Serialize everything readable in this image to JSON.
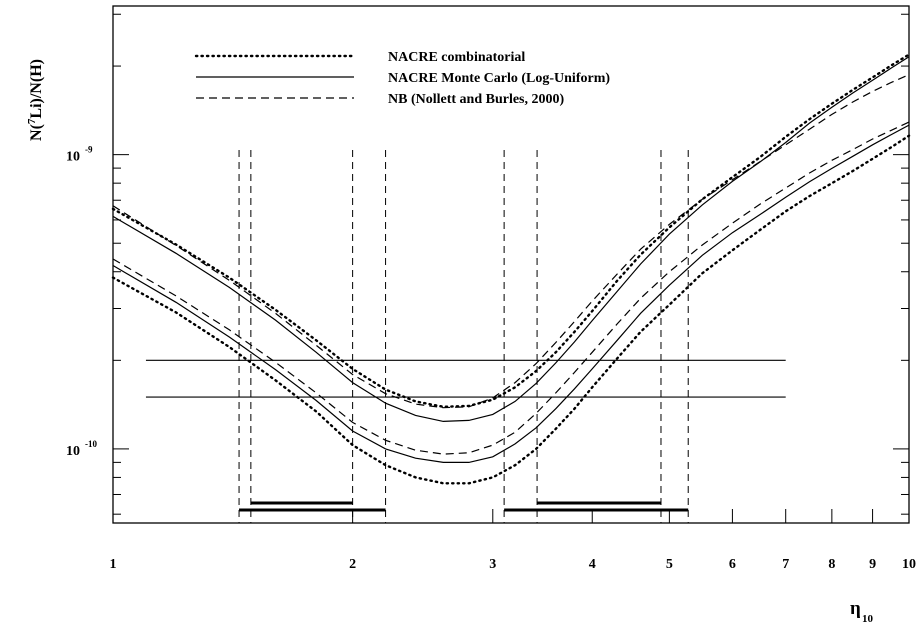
{
  "chart_data": {
    "type": "line",
    "title": "",
    "xlabel_main": "η",
    "xlabel_sub": "10",
    "ylabel_prefix": "N(",
    "ylabel_sup": "7",
    "ylabel_suffix": "Li)/N(H)",
    "x_scale": "log",
    "y_scale": "log",
    "xlim": [
      1,
      10
    ],
    "ylim": [
      5.6e-11,
      3.2e-09
    ],
    "grid": false,
    "legend_position": "top-center",
    "x_ticks": [
      {
        "value": 1,
        "label": "1"
      },
      {
        "value": 2,
        "label": "2"
      },
      {
        "value": 3,
        "label": "3"
      },
      {
        "value": 4,
        "label": "4"
      },
      {
        "value": 5,
        "label": "5"
      },
      {
        "value": 6,
        "label": "6"
      },
      {
        "value": 7,
        "label": "7"
      },
      {
        "value": 8,
        "label": "8"
      },
      {
        "value": 9,
        "label": "9"
      },
      {
        "value": 10,
        "label": "10"
      }
    ],
    "y_ticks": [
      {
        "value": 1e-10,
        "base": "10",
        "exp": "-10"
      },
      {
        "value": 1e-09,
        "base": "10",
        "exp": "-9"
      }
    ],
    "legend": [
      {
        "label": "NACRE combinatorial",
        "style": "dotted"
      },
      {
        "label": "NACRE Monte Carlo (Log-Uniform)",
        "style": "solid"
      },
      {
        "label": "NB (Nollett and Burles, 2000)",
        "style": "dashed"
      }
    ],
    "x": [
      1.0,
      1.2,
      1.4,
      1.6,
      1.8,
      2.0,
      2.2,
      2.4,
      2.6,
      2.8,
      3.0,
      3.2,
      3.4,
      3.6,
      3.8,
      4.0,
      4.3,
      4.6,
      5.0,
      5.5,
      6.0,
      6.5,
      7.0,
      7.5,
      8.0,
      8.5,
      9.0,
      9.5,
      10.0
    ],
    "series": [
      {
        "style": "dotted",
        "group": "upper",
        "values": [
          6.54e-10,
          4.95e-10,
          3.82e-10,
          2.97e-10,
          2.34e-10,
          1.87e-10,
          1.59e-10,
          1.45e-10,
          1.39e-10,
          1.4e-10,
          1.47e-10,
          1.62e-10,
          1.84e-10,
          2.13e-10,
          2.5e-10,
          2.94e-10,
          3.73e-10,
          4.57e-10,
          5.66e-10,
          7.05e-10,
          8.38e-10,
          9.81e-10,
          1.15e-09,
          1.32e-09,
          1.49e-09,
          1.66e-09,
          1.83e-09,
          2.01e-09,
          2.19e-09
        ]
      },
      {
        "style": "dotted",
        "group": "lower",
        "values": [
          3.82e-10,
          2.91e-10,
          2.22e-10,
          1.71e-10,
          1.34e-10,
          1.03e-10,
          8.8e-11,
          8e-11,
          7.64e-11,
          7.64e-11,
          8e-11,
          8.8e-11,
          1e-10,
          1.17e-10,
          1.37e-10,
          1.62e-10,
          2.03e-10,
          2.5e-10,
          3.09e-10,
          3.95e-10,
          4.73e-10,
          5.55e-10,
          6.42e-10,
          7.23e-10,
          8e-10,
          8.8e-10,
          9.68e-10,
          1.06e-09,
          1.16e-09
        ]
      },
      {
        "style": "solid",
        "group": "upper",
        "values": [
          6.17e-10,
          4.62e-10,
          3.54e-10,
          2.74e-10,
          2.13e-10,
          1.68e-10,
          1.43e-10,
          1.3e-10,
          1.24e-10,
          1.25e-10,
          1.31e-10,
          1.45e-10,
          1.67e-10,
          1.96e-10,
          2.31e-10,
          2.73e-10,
          3.43e-10,
          4.25e-10,
          5.37e-10,
          6.75e-10,
          8.11e-10,
          9.45e-10,
          1.1e-09,
          1.28e-09,
          1.45e-09,
          1.62e-09,
          1.79e-09,
          1.97e-09,
          2.15e-09
        ]
      },
      {
        "style": "solid",
        "group": "lower",
        "values": [
          4.2e-10,
          3.15e-10,
          2.4e-10,
          1.86e-10,
          1.46e-10,
          1.15e-10,
          1e-10,
          9.3e-11,
          9e-11,
          9e-11,
          9.4e-11,
          1.04e-10,
          1.18e-10,
          1.37e-10,
          1.6e-10,
          1.87e-10,
          2.34e-10,
          2.89e-10,
          3.6e-10,
          4.55e-10,
          5.43e-10,
          6.26e-10,
          7.17e-10,
          8.09e-10,
          8.98e-10,
          9.87e-10,
          1.08e-09,
          1.17e-09,
          1.26e-09
        ]
      },
      {
        "style": "dashed",
        "group": "upper",
        "values": [
          6.7e-10,
          4.91e-10,
          3.74e-10,
          2.89e-10,
          2.25e-10,
          1.79e-10,
          1.54e-10,
          1.42e-10,
          1.38e-10,
          1.39e-10,
          1.49e-10,
          1.68e-10,
          1.95e-10,
          2.3e-10,
          2.71e-10,
          3.18e-10,
          3.93e-10,
          4.77e-10,
          5.8e-10,
          7.05e-10,
          8.21e-10,
          9.47e-10,
          1.08e-09,
          1.22e-09,
          1.37e-09,
          1.51e-09,
          1.64e-09,
          1.76e-09,
          1.87e-09
        ]
      },
      {
        "style": "dashed",
        "group": "lower",
        "values": [
          4.42e-10,
          3.31e-10,
          2.54e-10,
          1.97e-10,
          1.55e-10,
          1.23e-10,
          1.07e-10,
          9.9e-11,
          9.6e-11,
          9.7e-11,
          1.03e-10,
          1.14e-10,
          1.32e-10,
          1.55e-10,
          1.82e-10,
          2.13e-10,
          2.66e-10,
          3.25e-10,
          4e-10,
          4.93e-10,
          5.85e-10,
          6.79e-10,
          7.7e-10,
          8.66e-10,
          9.57e-10,
          1.04e-09,
          1.13e-09,
          1.21e-09,
          1.29e-09
        ]
      }
    ],
    "horizontal_lines": [
      {
        "y": 2e-10,
        "x_from": 1.1,
        "x_to": 7.0
      },
      {
        "y": 1.5e-10,
        "x_from": 1.1,
        "x_to": 7.0
      }
    ],
    "vertical_dashed_lines": [
      1.44,
      1.49,
      2.0,
      2.2,
      3.1,
      3.41,
      4.88,
      5.28
    ],
    "intervals": [
      {
        "x_from": 1.49,
        "x_to": 2.0,
        "level": "upper"
      },
      {
        "x_from": 3.41,
        "x_to": 4.88,
        "level": "upper"
      },
      {
        "x_from": 1.44,
        "x_to": 2.2,
        "level": "lower"
      },
      {
        "x_from": 3.1,
        "x_to": 5.28,
        "level": "lower"
      }
    ]
  }
}
